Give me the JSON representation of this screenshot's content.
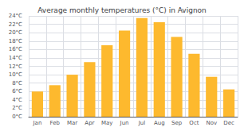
{
  "chart_data": {
    "type": "bar",
    "title": "Average monthly temperatures (°C) in Avignon",
    "categories": [
      "Jan",
      "Feb",
      "Mar",
      "Apr",
      "May",
      "Jun",
      "Jul",
      "Aug",
      "Sep",
      "Oct",
      "Nov",
      "Dec"
    ],
    "values": [
      6,
      7.5,
      10,
      13,
      17,
      20.5,
      23.5,
      22.5,
      19,
      15,
      9.5,
      6.5
    ],
    "color": "#FDB92E",
    "ylim": [
      0,
      24
    ],
    "yticks": [
      {
        "value": 0,
        "label": "0°C"
      },
      {
        "value": 2,
        "label": "2°C"
      },
      {
        "value": 4,
        "label": "4°C"
      },
      {
        "value": 6,
        "label": "6°C"
      },
      {
        "value": 8,
        "label": "8°C"
      },
      {
        "value": 10,
        "label": "10°C"
      },
      {
        "value": 12,
        "label": "12°C"
      },
      {
        "value": 14,
        "label": "14°C"
      },
      {
        "value": 16,
        "label": "16°C"
      },
      {
        "value": 18,
        "label": "18°C"
      },
      {
        "value": 20,
        "label": "20°C"
      },
      {
        "value": 22,
        "label": "22°C"
      },
      {
        "value": 24,
        "label": "24°C"
      }
    ],
    "grid": true
  }
}
